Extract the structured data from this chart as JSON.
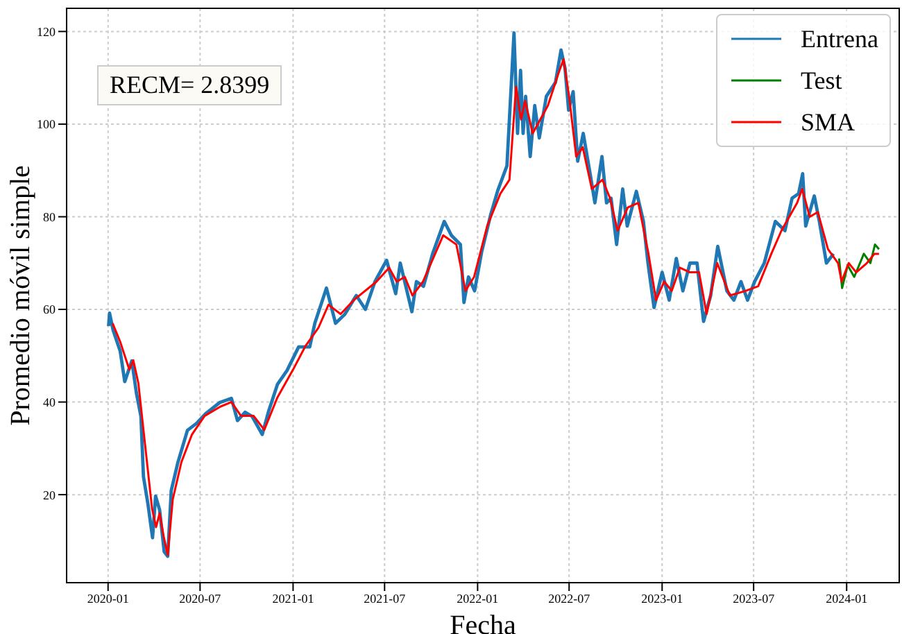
{
  "chart_data": {
    "type": "line",
    "xlabel": "Fecha",
    "ylabel": "Promedio móvil simple",
    "annotations": [
      "RECM= 2.8399"
    ],
    "xlim": [
      "2019-10-11",
      "2024-04-14"
    ],
    "ylim": [
      1,
      125
    ],
    "xticks": [
      "2020-01",
      "2020-07",
      "2021-01",
      "2021-07",
      "2022-01",
      "2022-07",
      "2023-01",
      "2023-07",
      "2024-01"
    ],
    "yticks": [
      20,
      40,
      60,
      80,
      100,
      120
    ],
    "grid": true,
    "legend": "top right",
    "line_style": "solid",
    "marker": "none",
    "series": [
      {
        "name": "Entrena",
        "color": "#1f77b4",
        "x": [
          "2020-01-02",
          "2020-01-04",
          "2020-01-11",
          "2020-01-25",
          "2020-02-03",
          "2020-02-17",
          "2020-02-26",
          "2020-03-06",
          "2020-03-11",
          "2020-03-20",
          "2020-03-29",
          "2020-04-04",
          "2020-04-12",
          "2020-04-21",
          "2020-04-28",
          "2020-05-05",
          "2020-05-18",
          "2020-06-06",
          "2020-06-24",
          "2020-07-12",
          "2020-08-09",
          "2020-09-01",
          "2020-09-13",
          "2020-09-28",
          "2020-10-12",
          "2020-11-01",
          "2020-11-13",
          "2020-12-01",
          "2020-12-20",
          "2021-01-12",
          "2021-02-03",
          "2021-02-13",
          "2021-03-08",
          "2021-03-26",
          "2021-04-13",
          "2021-05-06",
          "2021-05-24",
          "2021-06-12",
          "2021-07-05",
          "2021-07-23",
          "2021-08-01",
          "2021-08-24",
          "2021-09-02",
          "2021-09-16",
          "2021-10-04",
          "2021-10-27",
          "2021-11-10",
          "2021-11-28",
          "2021-12-05",
          "2021-12-14",
          "2021-12-26",
          "2022-01-09",
          "2022-01-27",
          "2022-02-10",
          "2022-02-28",
          "2022-03-14",
          "2022-03-21",
          "2022-03-27",
          "2022-04-01",
          "2022-04-06",
          "2022-04-15",
          "2022-04-24",
          "2022-05-03",
          "2022-05-17",
          "2022-06-04",
          "2022-06-15",
          "2022-06-23",
          "2022-06-30",
          "2022-07-09",
          "2022-07-18",
          "2022-07-29",
          "2022-08-12",
          "2022-08-21",
          "2022-09-04",
          "2022-09-13",
          "2022-09-22",
          "2022-10-03",
          "2022-10-15",
          "2022-10-24",
          "2022-11-11",
          "2022-11-25",
          "2022-12-04",
          "2022-12-16",
          "2023-01-01",
          "2023-01-15",
          "2023-01-29",
          "2023-02-11",
          "2023-02-25",
          "2023-03-11",
          "2023-03-24",
          "2023-04-07",
          "2023-04-21",
          "2023-05-09",
          "2023-05-23",
          "2023-06-06",
          "2023-06-19",
          "2023-07-03",
          "2023-07-22",
          "2023-08-13",
          "2023-09-01",
          "2023-09-15",
          "2023-09-28",
          "2023-10-06",
          "2023-10-12",
          "2023-10-29",
          "2023-11-08",
          "2023-11-22",
          "2023-12-06"
        ],
        "values": [
          56.4,
          59.2,
          55.5,
          51,
          44.4,
          48.9,
          42,
          36.9,
          23.9,
          17.9,
          10.7,
          19.7,
          16.7,
          7.7,
          6.7,
          20.9,
          26.9,
          33.9,
          35.4,
          37.5,
          39.9,
          40.8,
          36,
          37.8,
          36.9,
          33,
          37.8,
          43.8,
          46.8,
          51.9,
          51.9,
          57,
          64.6,
          57,
          58.9,
          63,
          60,
          66,
          70.6,
          63.4,
          70,
          59.5,
          66,
          65,
          72,
          79,
          76,
          74,
          61.5,
          67,
          64,
          72.4,
          80.5,
          85.7,
          91,
          119.7,
          98,
          111.6,
          98,
          106,
          93,
          104,
          97,
          106,
          109,
          116,
          112,
          103,
          107,
          92,
          98,
          89,
          83,
          93,
          83,
          84,
          74,
          86,
          78,
          85.5,
          79,
          70,
          60.4,
          68,
          62,
          71,
          64,
          70,
          70,
          57.4,
          63,
          73.6,
          64,
          62,
          66,
          62,
          66,
          70,
          79,
          77,
          84,
          85,
          89.3,
          78,
          84.5,
          79,
          70,
          72
        ]
      },
      {
        "name": "Test",
        "color": "#008000",
        "x": [
          "2023-12-17",
          "2023-12-23",
          "2024-01-03",
          "2024-01-16",
          "2024-02-04",
          "2024-02-17",
          "2024-02-26",
          "2024-03-05"
        ],
        "values": [
          71,
          64.6,
          69.5,
          67,
          72,
          70,
          74,
          73
        ]
      },
      {
        "name": "SMA",
        "color": "#ff0000",
        "x": [
          "2020-01-10",
          "2020-01-25",
          "2020-02-12",
          "2020-02-20",
          "2020-03-01",
          "2020-03-15",
          "2020-03-28",
          "2020-04-05",
          "2020-04-12",
          "2020-04-20",
          "2020-04-28",
          "2020-05-08",
          "2020-05-25",
          "2020-06-15",
          "2020-07-10",
          "2020-08-10",
          "2020-09-01",
          "2020-09-20",
          "2020-10-15",
          "2020-11-05",
          "2020-12-01",
          "2021-01-01",
          "2021-01-25",
          "2021-02-20",
          "2021-03-12",
          "2021-04-05",
          "2021-05-01",
          "2021-06-15",
          "2021-07-10",
          "2021-07-25",
          "2021-08-10",
          "2021-08-25",
          "2021-09-15",
          "2021-10-25",
          "2021-11-20",
          "2021-12-08",
          "2021-12-25",
          "2022-01-20",
          "2022-02-15",
          "2022-03-05",
          "2022-03-18",
          "2022-03-28",
          "2022-04-05",
          "2022-04-20",
          "2022-05-05",
          "2022-05-20",
          "2022-06-10",
          "2022-06-20",
          "2022-07-01",
          "2022-07-15",
          "2022-07-28",
          "2022-08-15",
          "2022-09-05",
          "2022-09-20",
          "2022-10-05",
          "2022-10-25",
          "2022-11-15",
          "2022-12-05",
          "2022-12-20",
          "2023-01-05",
          "2023-01-20",
          "2023-02-05",
          "2023-02-25",
          "2023-03-15",
          "2023-03-30",
          "2023-04-20",
          "2023-05-15",
          "2023-06-15",
          "2023-07-10",
          "2023-08-05",
          "2023-08-25",
          "2023-09-25",
          "2023-10-05",
          "2023-10-20",
          "2023-11-05",
          "2023-11-25",
          "2023-12-15",
          "2023-12-22",
          "2024-01-05",
          "2024-01-20",
          "2024-02-10",
          "2024-02-25",
          "2024-03-05"
        ],
        "values": [
          57,
          53,
          47,
          49,
          44,
          30,
          17,
          13,
          16,
          11,
          7,
          19,
          27,
          33,
          37,
          39,
          40,
          37,
          37,
          34,
          41,
          47,
          52,
          56,
          61,
          59,
          62,
          66,
          69,
          66,
          67,
          63,
          66,
          76,
          74,
          64,
          67,
          78,
          85,
          88,
          108,
          101,
          105,
          98,
          101,
          104,
          111,
          114,
          106,
          93,
          95,
          86,
          88,
          84,
          77,
          82,
          83,
          72,
          62,
          66,
          64,
          69,
          68,
          68,
          59,
          70,
          63,
          64,
          65,
          72,
          77,
          83,
          86,
          80,
          81,
          73,
          70,
          66,
          70,
          68,
          70,
          72,
          72
        ]
      }
    ]
  }
}
